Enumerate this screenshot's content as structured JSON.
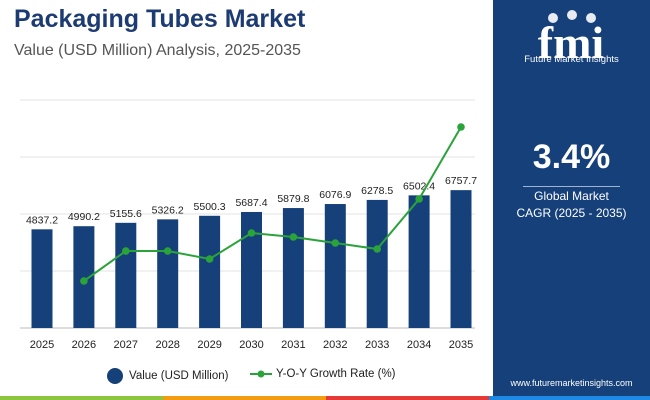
{
  "header": {
    "title": "Packaging Tubes Market",
    "subtitle": "Value (USD Million) Analysis, 2025-2035"
  },
  "side_panel": {
    "logo_letters": "fmi",
    "logo_text": "Future Market Insights",
    "cagr_value": "3.4%",
    "cagr_label_line1": "Global Market",
    "cagr_label_line2": "CAGR (2025 - 2035)",
    "website": "www.futuremarketinsights.com"
  },
  "colors": {
    "bar": "#16407a",
    "line": "#2aa33a",
    "title": "#1d3b73",
    "panel": "#16407a",
    "stripe_green": "#8cc63f",
    "stripe_orange": "#f39c12",
    "stripe_red": "#e53935",
    "stripe_blue": "#1e88e5"
  },
  "legend": {
    "bar_label": "Value (USD Million)",
    "line_label": "Y-O-Y Growth Rate (%)"
  },
  "chart_data": {
    "type": "bar",
    "title": "Packaging Tubes Market",
    "categories": [
      "2025",
      "2026",
      "2027",
      "2028",
      "2029",
      "2030",
      "2031",
      "2032",
      "2033",
      "2034",
      "2035"
    ],
    "series": [
      {
        "name": "Value (USD Million)",
        "kind": "bar",
        "values": [
          4837.2,
          4990.2,
          5155.6,
          5326.2,
          5500.3,
          5687.4,
          5879.8,
          6076.9,
          6278.5,
          6502.4,
          6757.7
        ],
        "labels": [
          "4837.2",
          "4990.2",
          "5155.6",
          "5326.2",
          "5500.3",
          "5687.4",
          "5879.8",
          "6076.9",
          "6278.5",
          "6502.4",
          "6757.7"
        ]
      },
      {
        "name": "Y-O-Y Growth Rate (%)",
        "kind": "line",
        "values": [
          null,
          3.16,
          3.31,
          3.31,
          3.27,
          3.4,
          3.38,
          3.35,
          3.32,
          3.57,
          3.93
        ]
      }
    ],
    "ylim": [
      0,
      8000
    ],
    "y2lim": [
      3.0,
      4.0
    ],
    "grid": true,
    "legend_position": "bottom"
  }
}
